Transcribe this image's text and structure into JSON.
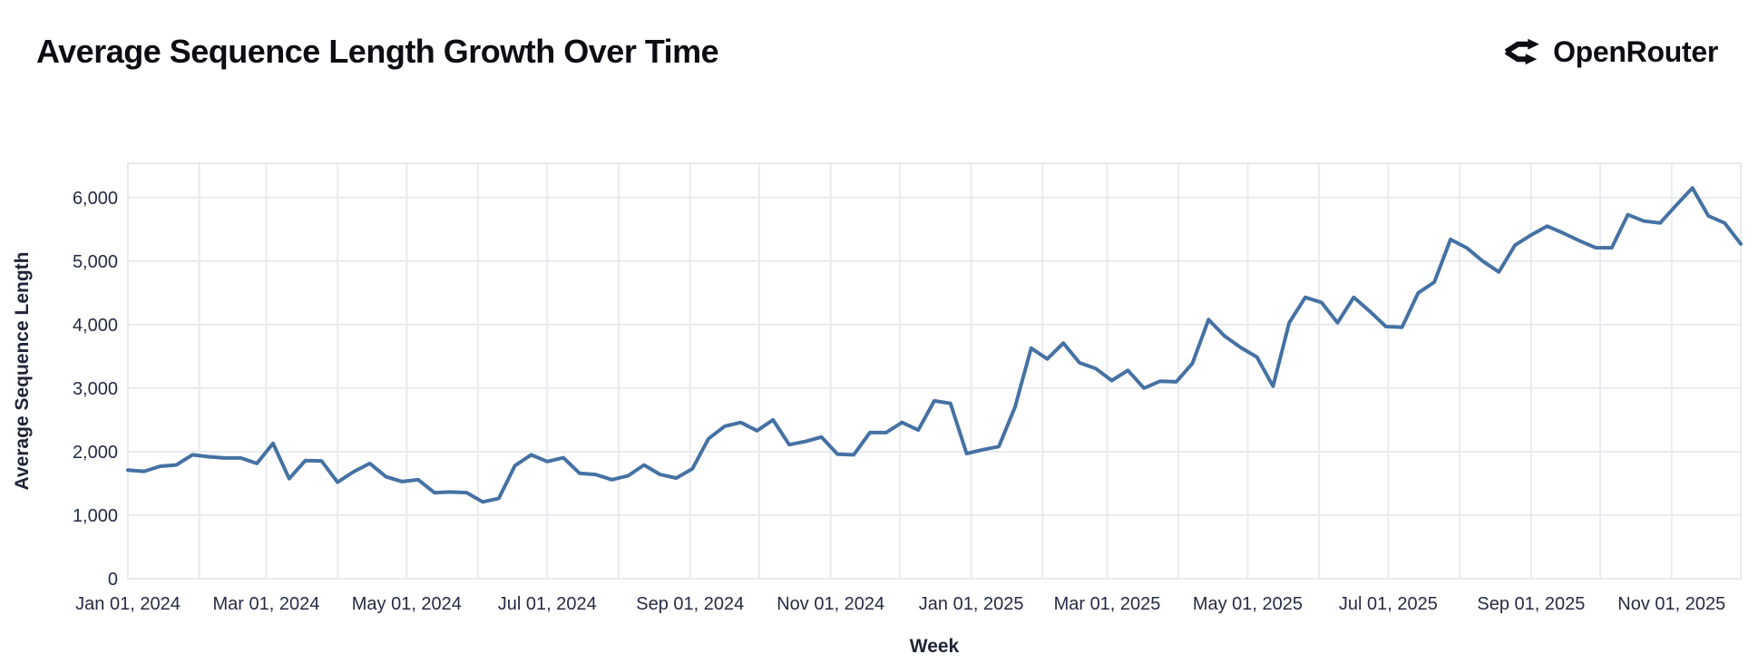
{
  "header": {
    "title": "Average Sequence Length Growth Over Time",
    "brand": "OpenRouter"
  },
  "colors": {
    "line": "#4571a3",
    "grid": "#e9ebf1",
    "tick_text": "#252b43",
    "title_text": "#0c0d12",
    "brand_text": "#0c0e14",
    "background": "#ffffff"
  },
  "chart_data": {
    "type": "line",
    "title": "Average Sequence Length Growth Over Time",
    "xlabel": "Week",
    "ylabel": "Average Sequence Length",
    "legend": false,
    "grid": true,
    "x_start_date": "2024-01-01",
    "x_step_days": 7,
    "x_total_days": 700,
    "ylim": [
      0,
      6540
    ],
    "y_ticks": [
      0,
      1000,
      2000,
      3000,
      4000,
      5000,
      6000
    ],
    "y_tick_labels": [
      "0",
      "1,000",
      "2,000",
      "3,000",
      "4,000",
      "5,000",
      "6,000"
    ],
    "x_tick_days": [
      0,
      60,
      121,
      182,
      244,
      305,
      366,
      425,
      486,
      547,
      609,
      670
    ],
    "x_tick_labels": [
      "Jan 01, 2024",
      "Mar 01, 2024",
      "May 01, 2024",
      "Jul 01, 2024",
      "Sep 01, 2024",
      "Nov 01, 2024",
      "Jan 01, 2025",
      "Mar 01, 2025",
      "May 01, 2025",
      "Jul 01, 2025",
      "Sep 01, 2025",
      "Nov 01, 2025"
    ],
    "month_gridline_days": [
      0,
      31,
      60,
      91,
      121,
      152,
      182,
      213,
      244,
      274,
      305,
      335,
      366,
      397,
      425,
      456,
      486,
      517,
      547,
      578,
      609,
      639,
      670,
      700
    ],
    "series": [
      {
        "name": "Average Sequence Length",
        "values": [
          1710,
          1690,
          1770,
          1790,
          1950,
          1920,
          1900,
          1900,
          1815,
          2130,
          1575,
          1860,
          1855,
          1520,
          1685,
          1815,
          1605,
          1530,
          1560,
          1355,
          1365,
          1355,
          1210,
          1265,
          1780,
          1950,
          1845,
          1905,
          1660,
          1640,
          1560,
          1620,
          1790,
          1640,
          1585,
          1730,
          2205,
          2400,
          2460,
          2330,
          2500,
          2110,
          2160,
          2230,
          1960,
          1950,
          2300,
          2300,
          2460,
          2340,
          2800,
          2760,
          1970,
          2030,
          2080,
          2700,
          3630,
          3460,
          3710,
          3400,
          3310,
          3120,
          3280,
          3000,
          3110,
          3100,
          3390,
          4080,
          3820,
          3640,
          3490,
          3030,
          4030,
          4430,
          4350,
          4030,
          4430,
          4210,
          3970,
          3960,
          4500,
          4670,
          5340,
          5210,
          5000,
          4830,
          5250,
          5410,
          5550,
          5440,
          5320,
          5210,
          5210,
          5730,
          5630,
          5600,
          5880,
          6150,
          5710,
          5600,
          5270
        ]
      }
    ]
  }
}
